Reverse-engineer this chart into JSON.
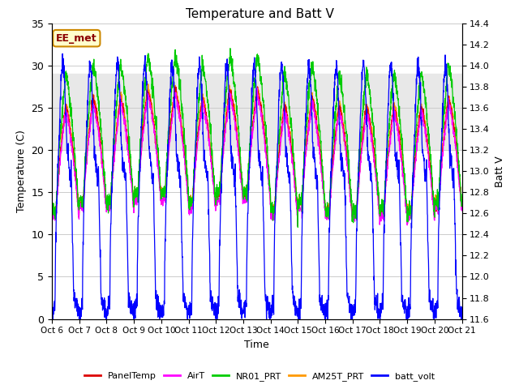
{
  "title": "Temperature and Batt V",
  "xlabel": "Time",
  "ylabel_left": "Temperature (C)",
  "ylabel_right": "Batt V",
  "annotation": "EE_met",
  "ylim_left": [
    0,
    35
  ],
  "ylim_right": [
    11.6,
    14.4
  ],
  "xtick_labels": [
    "Oct 6",
    "Oct 7",
    "Oct 8",
    "Oct 9",
    "Oct 10",
    "Oct 11",
    "Oct 12",
    "Oct 13",
    "Oct 14",
    "Oct 15",
    "Oct 16",
    "Oct 17",
    "Oct 18",
    "Oct 19",
    "Oct 20",
    "Oct 21"
  ],
  "legend_labels": [
    "PanelTemp",
    "AirT",
    "NR01_PRT",
    "AM25T_PRT",
    "batt_volt"
  ],
  "legend_colors": [
    "#dd0000",
    "#ff00ff",
    "#00cc00",
    "#ff9900",
    "#0000ff"
  ],
  "shaded_band": [
    20,
    29
  ],
  "num_days": 15,
  "samples_per_day": 144,
  "yticks_left": [
    0,
    5,
    10,
    15,
    20,
    25,
    30,
    35
  ],
  "yticks_right": [
    11.6,
    11.8,
    12.0,
    12.2,
    12.4,
    12.6,
    12.8,
    13.0,
    13.2,
    13.4,
    13.6,
    13.8,
    14.0,
    14.2,
    14.4
  ],
  "bgcolor": "#ffffff",
  "annotation_facecolor": "#ffffcc",
  "annotation_edgecolor": "#cc8800",
  "annotation_textcolor": "#8B0000",
  "grid_color": "#cccccc"
}
